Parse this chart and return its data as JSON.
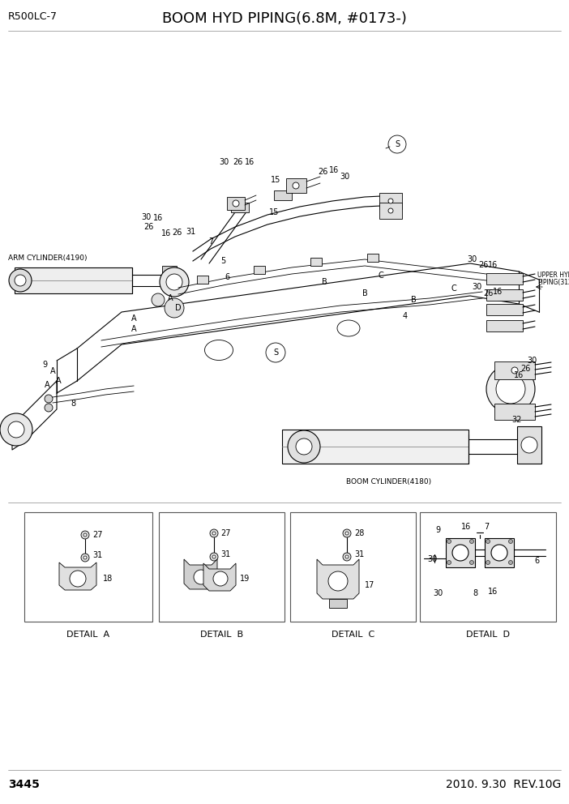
{
  "title": "BOOM HYD PIPING(6.8M, #0173-)",
  "model": "R500LC-7",
  "page_number": "3445",
  "date_rev": "2010. 9.30  REV.10G",
  "bg": "#ffffff",
  "lc": "#000000",
  "gray": "#888888",
  "lgray": "#cccccc",
  "title_fs": 13,
  "model_fs": 9,
  "label_fs": 7,
  "small_fs": 6.5,
  "footer_fs": 10
}
